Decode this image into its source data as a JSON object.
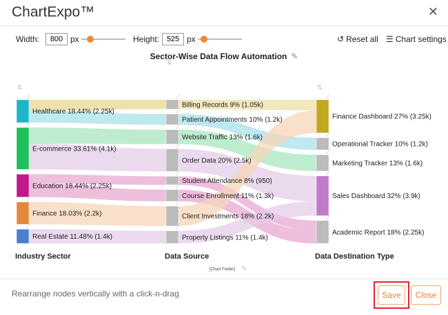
{
  "app": {
    "title": "ChartExpo™",
    "close_glyph": "✕"
  },
  "toolbar": {
    "width_label": "Width:",
    "width_value": "800",
    "width_unit": "px",
    "height_label": "Height:",
    "height_value": "525",
    "height_unit": "px",
    "reset_label": "Reset all",
    "settings_label": "Chart settings"
  },
  "chart_data": {
    "type": "sankey",
    "title": "Sector-Wise Data Flow Automation",
    "footer": "[Chart Footer]",
    "columns": [
      {
        "axis_label": "Industry Sector",
        "nodes": [
          {
            "label": "Healthcare 18.44% (2.25k)",
            "value": 2.25,
            "color": "#1fb6c9"
          },
          {
            "label": "E-commerce 33.61% (4.1k)",
            "value": 4.1,
            "color": "#1ec15a"
          },
          {
            "label": "Education 18.44% (2.25k)",
            "value": 2.25,
            "color": "#c0198a"
          },
          {
            "label": "Finance 18.03% (2.2k)",
            "value": 2.2,
            "color": "#e2893b"
          },
          {
            "label": "Real Estate 11.48% (1.4k)",
            "value": 1.4,
            "color": "#4a7fcc"
          }
        ]
      },
      {
        "axis_label": "Data Source",
        "nodes": [
          {
            "label": "Billing Records 9% (1.05k)",
            "value": 1.05,
            "color": "#bbbbbb"
          },
          {
            "label": "Patient Appointments 10% (1.2k)",
            "value": 1.2,
            "color": "#bbbbbb"
          },
          {
            "label": "Website Traffic 13% (1.6k)",
            "value": 1.6,
            "color": "#bbbbbb"
          },
          {
            "label": "Order Data 20% (2.5k)",
            "value": 2.5,
            "color": "#bbbbbb"
          },
          {
            "label": "Student Attendance 8% (950)",
            "value": 0.95,
            "color": "#bbbbbb"
          },
          {
            "label": "Course Enrollment 11% (1.3k)",
            "value": 1.3,
            "color": "#bbbbbb"
          },
          {
            "label": "Client Investments 18% (2.2k)",
            "value": 2.2,
            "color": "#bbbbbb"
          },
          {
            "label": "Property Listings 11% (1.4k)",
            "value": 1.4,
            "color": "#bbbbbb"
          }
        ]
      },
      {
        "axis_label": "Data Destination Type",
        "nodes": [
          {
            "label": "Finance Dashboard 27% (3.25k)",
            "value": 3.25,
            "color": "#c2a820"
          },
          {
            "label": "Operational Tracker 10% (1.2k)",
            "value": 1.2,
            "color": "#bbbbbb"
          },
          {
            "label": "Marketing Tracker 13% (1.6k)",
            "value": 1.6,
            "color": "#bbbbbb"
          },
          {
            "label": "Sales Dashboard 32% (3.9k)",
            "value": 3.9,
            "color": "#c07ac8"
          },
          {
            "label": "Academic Report 18% (2.25k)",
            "value": 2.25,
            "color": "#bbbbbb"
          }
        ]
      }
    ],
    "links": [
      {
        "from": [
          0,
          0
        ],
        "to": [
          1,
          0
        ],
        "value": 1.05,
        "color": "#e8d890"
      },
      {
        "from": [
          0,
          0
        ],
        "to": [
          1,
          1
        ],
        "value": 1.2,
        "color": "#a8e2ea"
      },
      {
        "from": [
          0,
          1
        ],
        "to": [
          1,
          2
        ],
        "value": 1.6,
        "color": "#a8e6bf"
      },
      {
        "from": [
          0,
          1
        ],
        "to": [
          1,
          3
        ],
        "value": 2.5,
        "color": "#e4cce8"
      },
      {
        "from": [
          0,
          2
        ],
        "to": [
          1,
          4
        ],
        "value": 0.95,
        "color": "#e8a8d2"
      },
      {
        "from": [
          0,
          2
        ],
        "to": [
          1,
          5
        ],
        "value": 1.3,
        "color": "#e8a8d2"
      },
      {
        "from": [
          0,
          3
        ],
        "to": [
          1,
          6
        ],
        "value": 2.2,
        "color": "#f6d6b8"
      },
      {
        "from": [
          0,
          4
        ],
        "to": [
          1,
          7
        ],
        "value": 1.4,
        "color": "#e4cce8"
      },
      {
        "from": [
          1,
          0
        ],
        "to": [
          2,
          0
        ],
        "value": 1.05,
        "color": "#ece0a8"
      },
      {
        "from": [
          1,
          1
        ],
        "to": [
          2,
          1
        ],
        "value": 1.2,
        "color": "#a8e2ea"
      },
      {
        "from": [
          1,
          2
        ],
        "to": [
          2,
          2
        ],
        "value": 1.6,
        "color": "#a8e6bf"
      },
      {
        "from": [
          1,
          3
        ],
        "to": [
          2,
          3
        ],
        "value": 2.5,
        "color": "#e4cce8"
      },
      {
        "from": [
          1,
          4
        ],
        "to": [
          2,
          4
        ],
        "value": 0.95,
        "color": "#e8a8d2"
      },
      {
        "from": [
          1,
          5
        ],
        "to": [
          2,
          4
        ],
        "value": 1.3,
        "color": "#e8a8d2"
      },
      {
        "from": [
          1,
          6
        ],
        "to": [
          2,
          0
        ],
        "value": 2.2,
        "color": "#f6d6b8"
      },
      {
        "from": [
          1,
          7
        ],
        "to": [
          2,
          3
        ],
        "value": 1.4,
        "color": "#e4cce8"
      }
    ]
  },
  "footer": {
    "hint": "Rearrange nodes vertically with a click-n-drag",
    "save_label": "Save",
    "close_label": "Close"
  }
}
